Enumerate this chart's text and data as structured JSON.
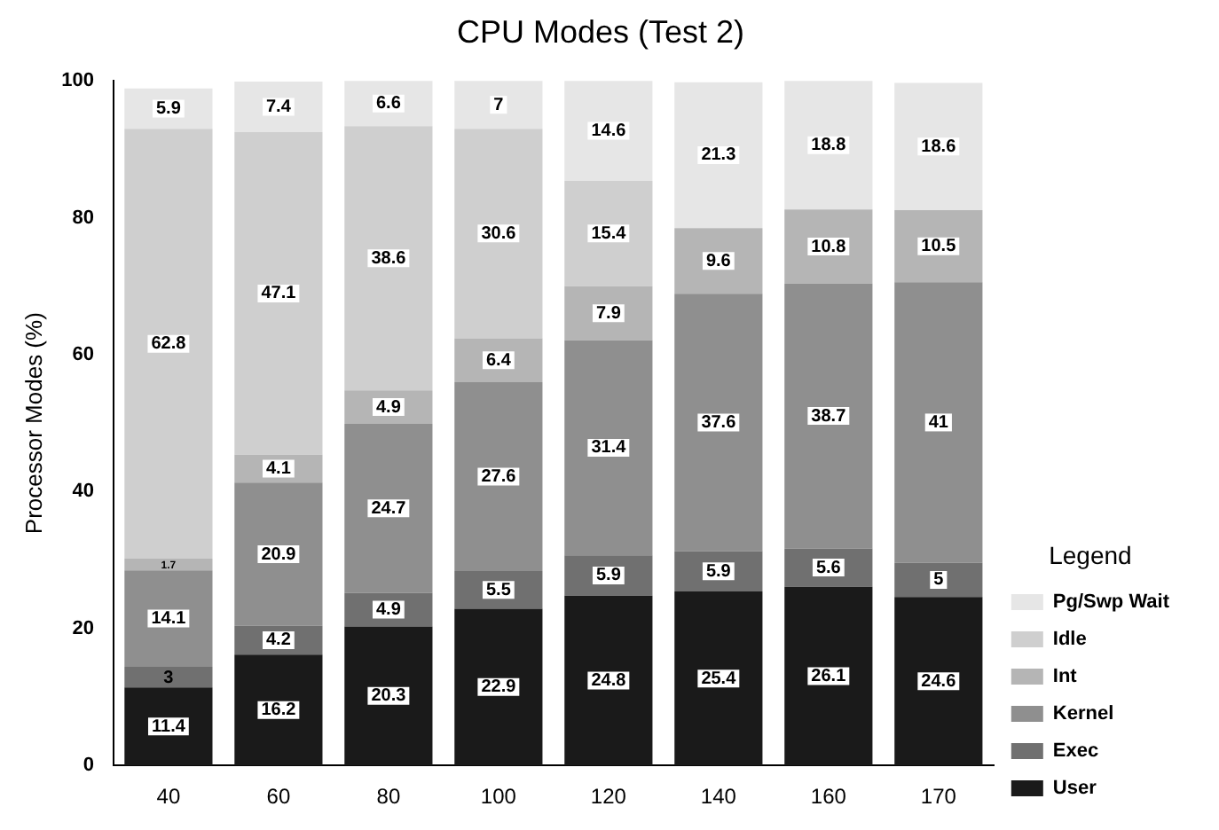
{
  "chart_data": {
    "type": "bar",
    "title": "CPU Modes (Test 2)",
    "ylabel": "Processor Modes (%)",
    "legend_title": "Legend",
    "categories": [
      "40",
      "60",
      "80",
      "100",
      "120",
      "140",
      "160",
      "170"
    ],
    "stacked": true,
    "ylim": [
      0,
      100
    ],
    "yticks": [
      0,
      20,
      40,
      60,
      80,
      100
    ],
    "grid": false,
    "legend": "right",
    "data_labels": true,
    "series": [
      {
        "name": "User",
        "color": "#1a1a1a",
        "values": [
          11.4,
          16.2,
          20.3,
          22.9,
          24.8,
          25.4,
          26.1,
          24.6
        ]
      },
      {
        "name": "Exec",
        "color": "#707070",
        "values": [
          3,
          4.2,
          4.9,
          5.5,
          5.9,
          5.9,
          5.6,
          5
        ]
      },
      {
        "name": "Kernel",
        "color": "#8f8f8f",
        "values": [
          14.1,
          20.9,
          24.7,
          27.6,
          31.4,
          37.6,
          38.7,
          41
        ]
      },
      {
        "name": "Int",
        "color": "#b5b5b5",
        "values": [
          1.7,
          4.1,
          4.9,
          6.4,
          7.9,
          9.6,
          10.8,
          10.5
        ]
      },
      {
        "name": "Idle",
        "color": "#cfcfcf",
        "values": [
          62.8,
          47.1,
          38.6,
          30.6,
          15.4,
          null,
          null,
          null
        ]
      },
      {
        "name": "Pg/Swp Wait",
        "color": "#e6e6e6",
        "values": [
          5.9,
          7.4,
          6.6,
          7,
          14.6,
          21.3,
          18.8,
          18.6
        ]
      }
    ]
  }
}
